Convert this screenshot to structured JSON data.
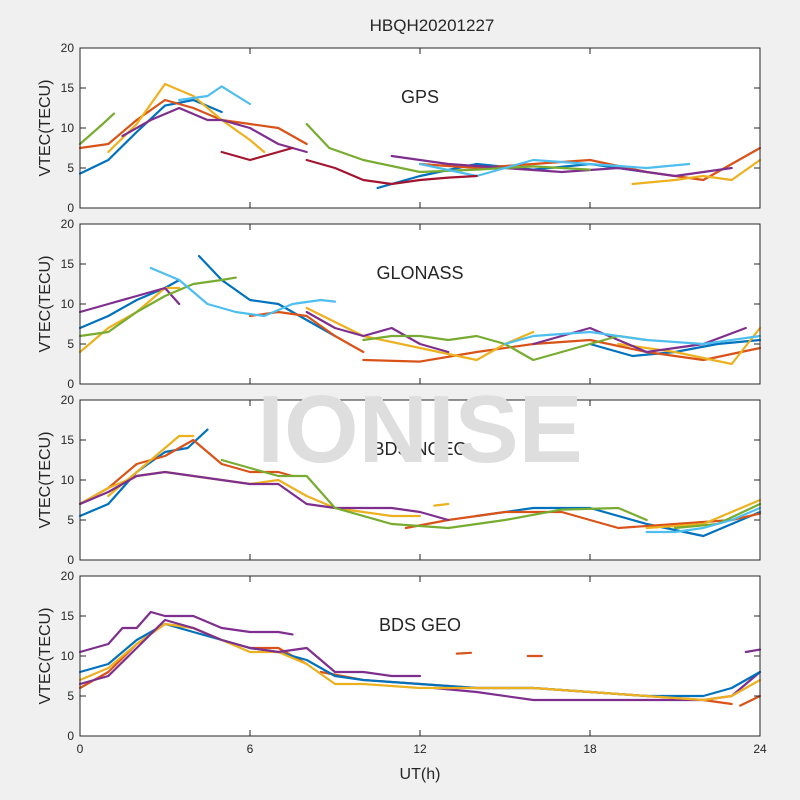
{
  "figure_title": "HBQH20201227",
  "watermark": "IONISE",
  "chart_data": [
    {
      "type": "line",
      "title": "GPS",
      "ylabel": "VTEC(TECU)",
      "xlabel": "",
      "xlim": [
        0,
        24
      ],
      "ylim": [
        0,
        20
      ],
      "xticks": [
        "0",
        "6",
        "12",
        "18",
        "24"
      ],
      "yticks": [
        "0",
        "5",
        "10",
        "15",
        "20"
      ],
      "show_x_tick_labels": false,
      "series": [
        {
          "color": "#0072BD",
          "x": [
            0,
            1,
            2,
            3,
            4,
            5
          ],
          "y": [
            4.3,
            6,
            9.5,
            12.8,
            13.5,
            12
          ]
        },
        {
          "color": "#0072BD",
          "x": [
            10.5,
            12,
            14,
            16,
            18,
            20
          ],
          "y": [
            2.5,
            4,
            5.5,
            4.8,
            5.5,
            4.5
          ]
        },
        {
          "color": "#D95319",
          "x": [
            0,
            1,
            2,
            3,
            4,
            5,
            6,
            7,
            8
          ],
          "y": [
            7.5,
            8,
            11,
            13.5,
            12.5,
            11,
            10.5,
            10,
            8
          ]
        },
        {
          "color": "#D95319",
          "x": [
            12,
            14,
            16,
            18,
            20,
            22,
            23,
            24
          ],
          "y": [
            5.5,
            5,
            5.5,
            6,
            4.5,
            3.5,
            5.5,
            7.5
          ]
        },
        {
          "color": "#EDB120",
          "x": [
            1,
            2,
            3,
            4,
            5,
            6,
            6.5
          ],
          "y": [
            7,
            10.5,
            15.5,
            14,
            11,
            8.5,
            7
          ]
        },
        {
          "color": "#EDB120",
          "x": [
            19.5,
            21,
            22,
            23,
            24
          ],
          "y": [
            3,
            3.5,
            4,
            3.5,
            6
          ]
        },
        {
          "color": "#7E2F8E",
          "x": [
            1.5,
            2.5,
            3.5,
            4.5,
            5,
            6,
            7,
            8
          ],
          "y": [
            9,
            11,
            12.5,
            11,
            11,
            10,
            8,
            7
          ]
        },
        {
          "color": "#7E2F8E",
          "x": [
            11,
            13,
            15,
            17,
            19,
            21,
            23
          ],
          "y": [
            6.5,
            5.5,
            5,
            4.5,
            5,
            4,
            5
          ]
        },
        {
          "color": "#77AC30",
          "x": [
            0,
            0.8,
            1.2
          ],
          "y": [
            8,
            10.5,
            11.8
          ]
        },
        {
          "color": "#77AC30",
          "x": [
            8,
            8.8,
            10,
            12,
            14,
            16,
            18
          ],
          "y": [
            10.5,
            7.5,
            6,
            4.5,
            4.8,
            5.2,
            4.8
          ]
        },
        {
          "color": "#4DBEEE",
          "x": [
            3.5,
            4.5,
            5,
            6
          ],
          "y": [
            13.5,
            14,
            15.2,
            13
          ]
        },
        {
          "color": "#4DBEEE",
          "x": [
            12,
            14,
            16,
            18,
            20,
            21.5
          ],
          "y": [
            5.5,
            4,
            6,
            5.5,
            5,
            5.5
          ]
        },
        {
          "color": "#A2142F",
          "x": [
            5,
            6,
            7,
            7.5
          ],
          "y": [
            7,
            6,
            7,
            7.5
          ]
        },
        {
          "color": "#A2142F",
          "x": [
            8,
            9,
            10,
            11,
            12,
            13,
            14
          ],
          "y": [
            6,
            5,
            3.5,
            3,
            3.5,
            3.8,
            4
          ]
        }
      ]
    },
    {
      "type": "line",
      "title": "GLONASS",
      "ylabel": "VTEC(TECU)",
      "xlabel": "",
      "xlim": [
        0,
        24
      ],
      "ylim": [
        0,
        20
      ],
      "xticks": [
        "0",
        "6",
        "12",
        "18",
        "24"
      ],
      "yticks": [
        "0",
        "5",
        "10",
        "15",
        "20"
      ],
      "show_x_tick_labels": false,
      "series": [
        {
          "color": "#0072BD",
          "x": [
            0,
            1,
            2,
            3,
            3.5
          ],
          "y": [
            7,
            8.5,
            10.5,
            12,
            13
          ]
        },
        {
          "color": "#0072BD",
          "x": [
            4.2,
            5,
            6,
            7,
            8,
            9
          ],
          "y": [
            16,
            13,
            10.5,
            10,
            8,
            6
          ]
        },
        {
          "color": "#0072BD",
          "x": [
            18,
            19.5,
            21,
            22.5,
            24
          ],
          "y": [
            5,
            3.5,
            4,
            5,
            5.5
          ]
        },
        {
          "color": "#D95319",
          "x": [
            6,
            7,
            8,
            9,
            10
          ],
          "y": [
            8.5,
            9,
            8.5,
            6,
            4
          ]
        },
        {
          "color": "#D95319",
          "x": [
            10,
            12,
            14,
            16,
            18,
            20,
            22,
            24
          ],
          "y": [
            3,
            2.8,
            4,
            5,
            5.5,
            4,
            3,
            4.5
          ]
        },
        {
          "color": "#EDB120",
          "x": [
            0,
            1,
            2,
            3,
            3.5
          ],
          "y": [
            4,
            7,
            9,
            12,
            12
          ]
        },
        {
          "color": "#EDB120",
          "x": [
            8,
            10,
            12,
            14,
            15,
            16
          ],
          "y": [
            9.5,
            6,
            4.5,
            3,
            5,
            6.5
          ]
        },
        {
          "color": "#EDB120",
          "x": [
            19,
            21,
            23,
            24
          ],
          "y": [
            5,
            4,
            2.5,
            7
          ]
        },
        {
          "color": "#7E2F8E",
          "x": [
            0,
            1,
            2,
            3,
            3.5
          ],
          "y": [
            9,
            10,
            11,
            12,
            10
          ]
        },
        {
          "color": "#7E2F8E",
          "x": [
            8,
            9,
            10,
            11,
            12,
            13
          ],
          "y": [
            9,
            7,
            6,
            7,
            5,
            4
          ]
        },
        {
          "color": "#7E2F8E",
          "x": [
            16,
            17,
            18,
            19,
            20,
            22,
            23.5
          ],
          "y": [
            5,
            6,
            7,
            5.5,
            4,
            5,
            7
          ]
        },
        {
          "color": "#77AC30",
          "x": [
            0,
            1,
            2,
            3,
            4,
            5,
            5.5
          ],
          "y": [
            6,
            6.5,
            9,
            11,
            12.5,
            13,
            13.3
          ]
        },
        {
          "color": "#77AC30",
          "x": [
            10,
            11,
            12,
            13,
            14,
            15,
            16,
            17
          ],
          "y": [
            5.5,
            6,
            6,
            5.5,
            6,
            5,
            3,
            4
          ]
        },
        {
          "color": "#77AC30",
          "x": [
            17,
            18,
            19,
            20
          ],
          "y": [
            4,
            5,
            6,
            5.5
          ]
        },
        {
          "color": "#4DBEEE",
          "x": [
            2.5,
            3.5,
            4.5,
            5.5,
            6.5,
            7.5,
            8.5,
            9
          ],
          "y": [
            14.5,
            13,
            10,
            9,
            8.5,
            10,
            10.5,
            10.3
          ]
        },
        {
          "color": "#4DBEEE",
          "x": [
            15,
            16,
            18,
            20,
            22,
            24
          ],
          "y": [
            5,
            6,
            6.5,
            5.5,
            5,
            6
          ]
        }
      ]
    },
    {
      "type": "line",
      "title": "BDS NGEO",
      "ylabel": "VTEC(TECU)",
      "xlabel": "",
      "xlim": [
        0,
        24
      ],
      "ylim": [
        0,
        20
      ],
      "xticks": [
        "0",
        "6",
        "12",
        "18",
        "24"
      ],
      "yticks": [
        "0",
        "5",
        "10",
        "15",
        "20"
      ],
      "show_x_tick_labels": false,
      "series": [
        {
          "color": "#0072BD",
          "x": [
            0,
            1,
            2,
            3,
            3.8,
            4.5
          ],
          "y": [
            5.5,
            7,
            11,
            13.5,
            14,
            16.3
          ]
        },
        {
          "color": "#0072BD",
          "x": [
            14,
            16,
            18,
            20,
            22,
            24
          ],
          "y": [
            5.5,
            6.5,
            6.5,
            4.5,
            3,
            6
          ]
        },
        {
          "color": "#D95319",
          "x": [
            0,
            1,
            2,
            3,
            4,
            5,
            6,
            7,
            7.5
          ],
          "y": [
            7,
            9,
            12,
            13,
            15,
            12,
            11,
            11,
            10.5
          ]
        },
        {
          "color": "#D95319",
          "x": [
            11.5,
            13,
            15,
            17,
            19,
            21,
            23,
            24
          ],
          "y": [
            4,
            5,
            6,
            6,
            4,
            4.5,
            5,
            5.8
          ]
        },
        {
          "color": "#EDB120",
          "x": [
            1,
            2,
            3,
            3.5,
            4
          ],
          "y": [
            8,
            11,
            14,
            15.5,
            15.5
          ]
        },
        {
          "color": "#EDB120",
          "x": [
            0,
            1,
            2,
            3,
            4,
            5,
            6,
            7,
            8,
            9,
            10,
            11,
            12
          ],
          "y": [
            7,
            9,
            10.5,
            11,
            10.5,
            10,
            9.5,
            10,
            8,
            6.5,
            6,
            5.5,
            5.5
          ]
        },
        {
          "color": "#EDB120",
          "x": [
            12.5,
            13
          ],
          "y": [
            6.8,
            7
          ]
        },
        {
          "color": "#EDB120",
          "x": [
            20,
            22,
            24
          ],
          "y": [
            4,
            4.5,
            7.5
          ]
        },
        {
          "color": "#7E2F8E",
          "x": [
            0,
            1,
            2,
            3,
            4,
            5,
            6,
            7,
            8,
            9,
            10,
            11,
            12,
            13
          ],
          "y": [
            7,
            8.5,
            10.5,
            11,
            10.5,
            10,
            9.5,
            9.5,
            7,
            6.5,
            6.5,
            6.5,
            6,
            5
          ]
        },
        {
          "color": "#77AC30",
          "x": [
            5,
            6,
            7,
            8,
            9,
            11,
            13,
            15,
            17,
            19,
            20
          ],
          "y": [
            12.5,
            11.5,
            10.5,
            10.5,
            6.5,
            4.5,
            4,
            5,
            6.3,
            6.5,
            5
          ]
        },
        {
          "color": "#77AC30",
          "x": [
            21,
            22.5,
            24
          ],
          "y": [
            4,
            4.5,
            7
          ]
        },
        {
          "color": "#4DBEEE",
          "x": [
            20,
            21,
            22,
            23,
            24
          ],
          "y": [
            3.5,
            3.5,
            4,
            5,
            6.5
          ]
        }
      ]
    },
    {
      "type": "line",
      "title": "BDS GEO",
      "ylabel": "VTEC(TECU)",
      "xlabel": "UT(h)",
      "xlim": [
        0,
        24
      ],
      "ylim": [
        0,
        20
      ],
      "xticks": [
        "0",
        "6",
        "12",
        "18",
        "24"
      ],
      "yticks": [
        "0",
        "5",
        "10",
        "15",
        "20"
      ],
      "show_x_tick_labels": true,
      "series": [
        {
          "color": "#7E2F8E",
          "x": [
            0,
            1,
            1.5,
            2,
            2.5,
            3,
            4,
            5,
            6,
            7,
            7.5
          ],
          "y": [
            10.5,
            11.5,
            13.5,
            13.5,
            15.5,
            15,
            15,
            13.5,
            13,
            13,
            12.7
          ]
        },
        {
          "color": "#7E2F8E",
          "x": [
            12.5,
            14,
            16,
            18,
            20,
            22,
            23,
            24
          ],
          "y": [
            6,
            5.5,
            4.5,
            4.5,
            4.5,
            4.5,
            5,
            8
          ]
        },
        {
          "color": "#7E2F8E",
          "x": [
            23.5,
            24
          ],
          "y": [
            10.5,
            10.8
          ]
        },
        {
          "color": "#D95319",
          "x": [
            0,
            1,
            2,
            3,
            4,
            5,
            6,
            7,
            8
          ],
          "y": [
            6,
            8,
            11.5,
            14,
            13.5,
            12,
            11,
            11,
            9
          ]
        },
        {
          "color": "#D95319",
          "x": [
            8.5,
            10,
            12,
            14,
            16,
            18,
            20,
            22,
            23
          ],
          "y": [
            8,
            7,
            6.5,
            6,
            6,
            5.5,
            5,
            4.5,
            4
          ]
        },
        {
          "color": "#D95319",
          "x": [
            13.3,
            13.8
          ],
          "y": [
            10.3,
            10.4
          ]
        },
        {
          "color": "#D95319",
          "x": [
            15.8,
            16.3
          ],
          "y": [
            10,
            10
          ]
        },
        {
          "color": "#D95319",
          "x": [
            23.3,
            24
          ],
          "y": [
            3.8,
            5
          ]
        },
        {
          "color": "#0072BD",
          "x": [
            0,
            1,
            2,
            3,
            4,
            5,
            6,
            7,
            8,
            9,
            10,
            12,
            14,
            16,
            18,
            20,
            22,
            23,
            24
          ],
          "y": [
            8,
            9,
            12,
            14,
            13,
            12,
            11,
            10.5,
            9.5,
            7.5,
            7,
            6.5,
            6,
            6,
            5.5,
            5,
            5,
            6,
            8
          ]
        },
        {
          "color": "#EDB120",
          "x": [
            0,
            1,
            2,
            3,
            4,
            5,
            6,
            7,
            8,
            9,
            10,
            12,
            14,
            16,
            18,
            20,
            22,
            23,
            24
          ],
          "y": [
            7,
            8.5,
            11.5,
            14,
            13.5,
            12,
            10.5,
            10.5,
            9,
            6.5,
            6.5,
            6,
            6,
            6,
            5.5,
            5,
            4.5,
            5,
            7
          ]
        },
        {
          "color": "#7E2F8E",
          "x": [
            0,
            1,
            2,
            3,
            4,
            5,
            6,
            7,
            8,
            9,
            10,
            11,
            12
          ],
          "y": [
            6.5,
            7.5,
            11,
            14.5,
            13.5,
            12,
            11,
            10.5,
            11,
            8,
            8,
            7.5,
            7.5
          ]
        }
      ]
    }
  ]
}
